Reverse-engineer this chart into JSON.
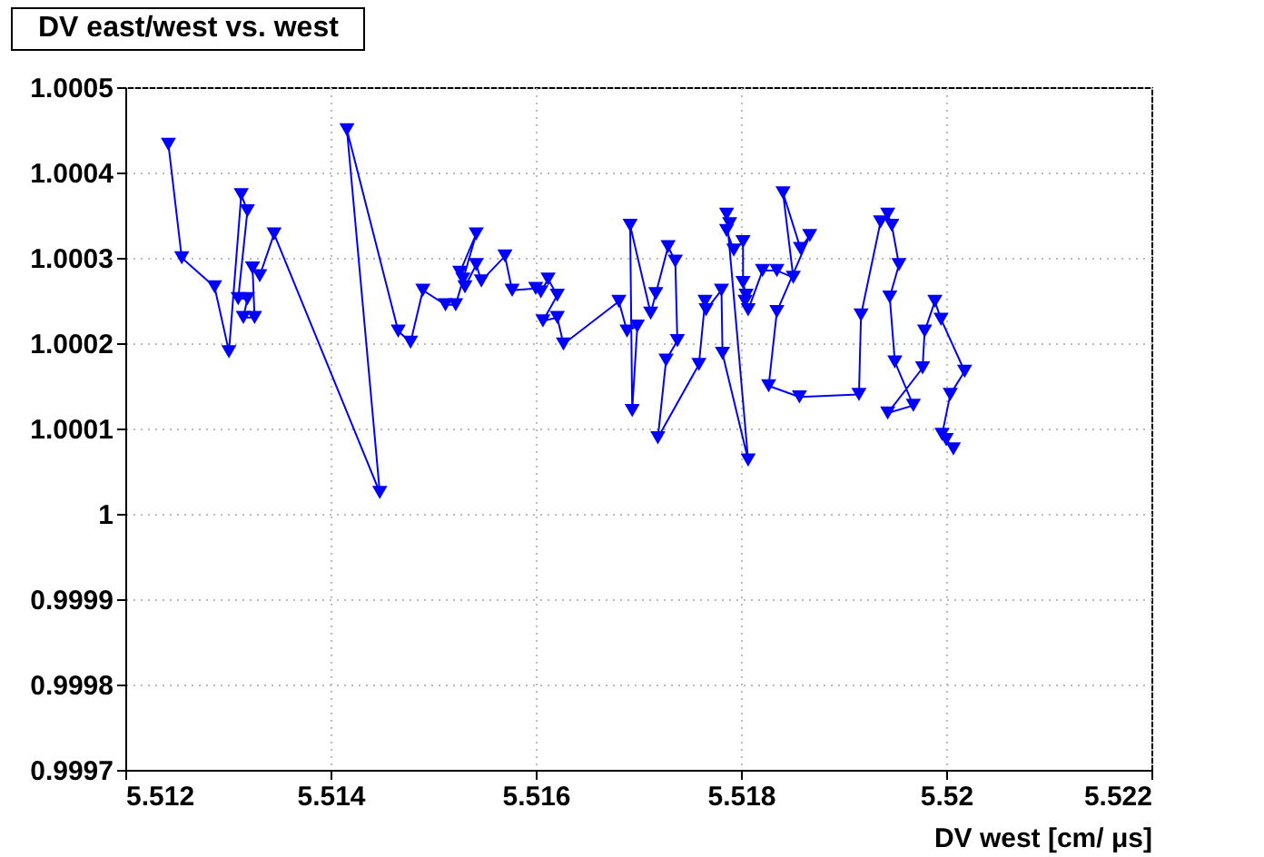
{
  "chart_data": {
    "type": "line",
    "title": "DV east/west vs. west",
    "xlabel": "DV west [cm/ μs]",
    "xlim": [
      5.512,
      5.522
    ],
    "xticks": [
      5.512,
      5.514,
      5.516,
      5.518,
      5.52,
      5.522
    ],
    "ylim": [
      0.9997,
      1.0005
    ],
    "yticks": [
      0.9997,
      0.9998,
      0.9999,
      1,
      1.0001,
      1.0002,
      1.0003,
      1.0004,
      1.0005
    ],
    "grid": true,
    "marker": "triangle",
    "line_style": "solid",
    "series": [
      {
        "color": "#0000ff",
        "x": [
          5.51242,
          5.51255,
          5.51287,
          5.51301,
          5.51313,
          5.51319,
          5.5131,
          5.51319,
          5.51315,
          5.51326,
          5.51324,
          5.51331,
          5.51345,
          5.51448,
          5.51416,
          5.51466,
          5.51478,
          5.5149,
          5.51512,
          5.51522,
          5.51542,
          5.51526,
          5.51529,
          5.51531,
          5.51542,
          5.51547,
          5.5157,
          5.51577,
          5.516,
          5.51605,
          5.51612,
          5.51621,
          5.51607,
          5.51621,
          5.51627,
          5.51681,
          5.51689,
          5.51699,
          5.51694,
          5.51692,
          5.51712,
          5.51717,
          5.51729,
          5.51736,
          5.51738,
          5.51727,
          5.51719,
          5.51759,
          5.51765,
          5.51766,
          5.51781,
          5.51782,
          5.51807,
          5.51786,
          5.51789,
          5.51786,
          5.51793,
          5.51802,
          5.51802,
          5.51805,
          5.51804,
          5.51807,
          5.51821,
          5.51835,
          5.51851,
          5.51841,
          5.51858,
          5.51867,
          5.51835,
          5.51827,
          5.51857,
          5.51915,
          5.51917,
          5.51936,
          5.51943,
          5.51947,
          5.51954,
          5.51945,
          5.5195,
          5.51968,
          5.51943,
          5.51977,
          5.51979,
          5.51989,
          5.51995,
          5.52018,
          5.52004,
          5.51996,
          5.52,
          5.52007
        ],
        "values": [
          1.000433,
          1.0003,
          1.000266,
          1.00019,
          1.000374,
          1.000355,
          1.000252,
          1.000252,
          1.00023,
          1.00023,
          1.000288,
          1.000279,
          1.000328,
          1.000025,
          1.00045,
          1.000214,
          1.000201,
          1.000262,
          1.000245,
          1.000245,
          1.000328,
          1.000283,
          1.000275,
          1.000266,
          1.000292,
          1.000273,
          1.000302,
          1.000262,
          1.000264,
          1.00026,
          1.000275,
          1.000256,
          1.000226,
          1.00023,
          1.000199,
          1.000249,
          1.000214,
          1.00022,
          1.000121,
          1.000338,
          1.000235,
          1.000258,
          1.000313,
          1.000296,
          1.000203,
          1.00018,
          1.000089,
          1.000175,
          1.000249,
          1.000239,
          1.000262,
          1.000188,
          1.000063,
          1.000351,
          1.00034,
          1.000332,
          1.000309,
          1.000319,
          1.000271,
          1.000256,
          1.000249,
          1.000239,
          1.000285,
          1.000285,
          1.000277,
          1.000376,
          1.000311,
          1.000326,
          1.000237,
          1.00015,
          1.000137,
          1.00014,
          1.000233,
          1.000342,
          1.000351,
          1.000338,
          1.000292,
          1.000254,
          1.000178,
          1.000127,
          1.000118,
          1.000171,
          1.000214,
          1.000249,
          1.000228,
          1.000167,
          1.00014,
          1.000093,
          1.000087,
          1.000076
        ]
      }
    ]
  }
}
